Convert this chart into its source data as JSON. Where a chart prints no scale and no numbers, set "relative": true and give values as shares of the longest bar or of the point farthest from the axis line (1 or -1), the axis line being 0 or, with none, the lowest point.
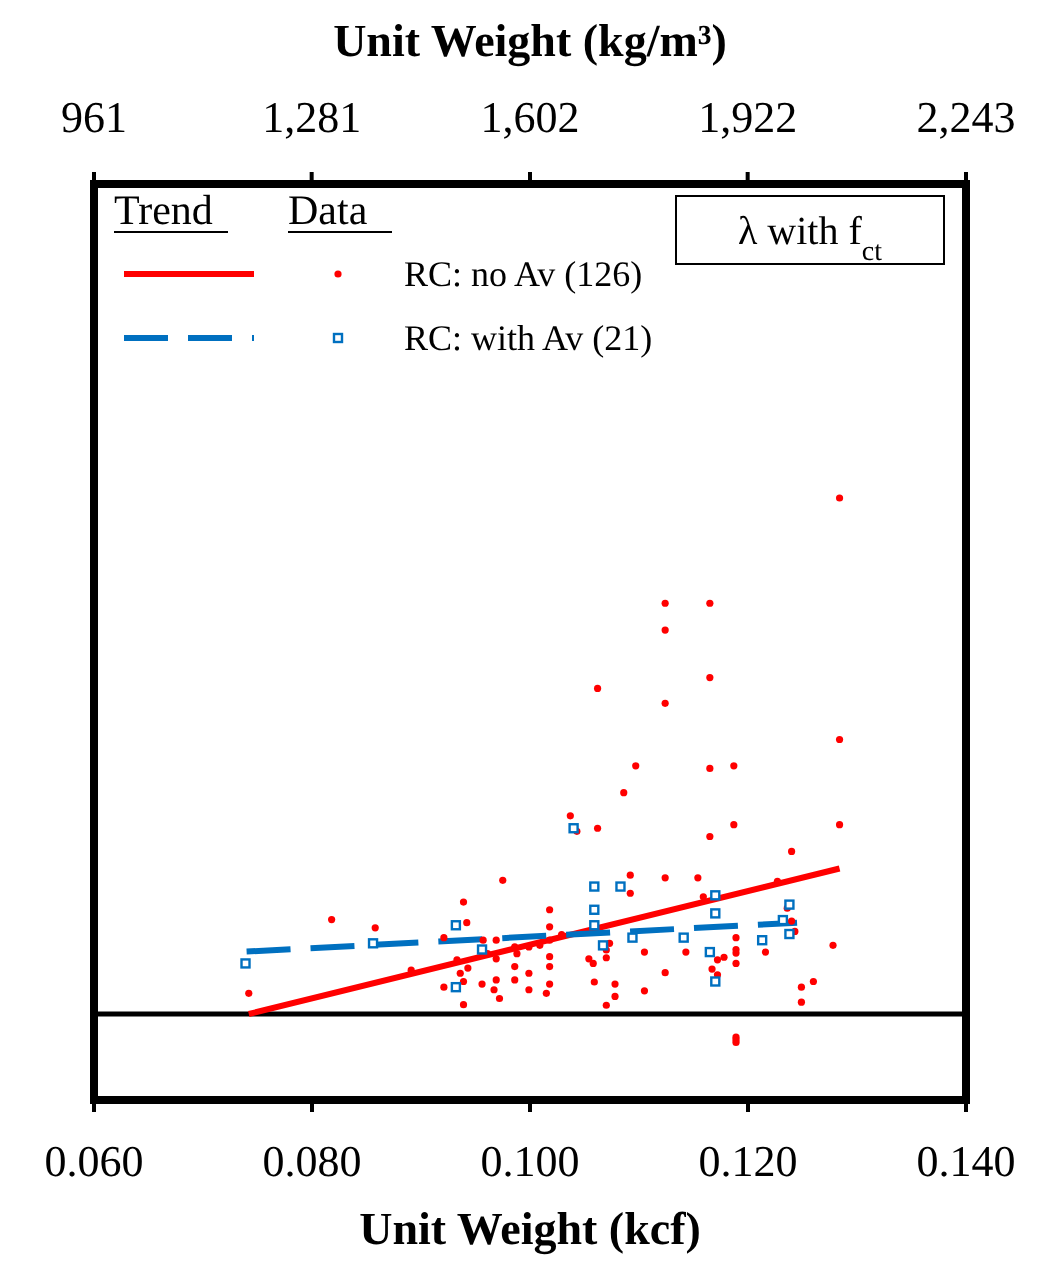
{
  "chart_data": {
    "type": "scatter",
    "relative": true,
    "xlabel": "Unit Weight (kcf)",
    "x2label": "Unit Weight (kg/m³)",
    "xlim": [
      0.06,
      0.14
    ],
    "xticks": [
      {
        "value": 0.06,
        "label": "0.060"
      },
      {
        "value": 0.08,
        "label": "0.080"
      },
      {
        "value": 0.1,
        "label": "0.100"
      },
      {
        "value": 0.12,
        "label": "0.120"
      },
      {
        "value": 0.14,
        "label": "0.140"
      }
    ],
    "x2lim": [
      961,
      2243
    ],
    "x2ticks": [
      {
        "value": 961,
        "label": "961"
      },
      {
        "value": 1281,
        "label": "1,281"
      },
      {
        "value": 1602,
        "label": "1,602"
      },
      {
        "value": 1922,
        "label": "1,922"
      },
      {
        "value": 2243,
        "label": "2,243"
      }
    ],
    "grid": false,
    "legend": "top left",
    "annotations": [
      "Trend",
      "Data",
      "λ with f$_{ct}$"
    ],
    "series": [
      {
        "type": "line",
        "color": "#ff0000",
        "line_style": "solid",
        "marker": "none",
        "x": [
          0.0742,
          0.1284
        ],
        "values": [
          0,
          0.282
        ]
      },
      {
        "type": "line",
        "color": "#0070c0",
        "line_style": "dashed",
        "marker": "none",
        "x": [
          0.074,
          0.1245
        ],
        "values": [
          0.121,
          0.177
        ]
      },
      {
        "name": "RC: no Av (126)",
        "color": "#ff0000",
        "marker": "circle",
        "x": [
          0.0742,
          0.0818,
          0.0858,
          0.0891,
          0.0921,
          0.0921,
          0.0933,
          0.0936,
          0.0939,
          0.0942,
          0.0939,
          0.0939,
          0.0943,
          0.0957,
          0.0956,
          0.0961,
          0.0969,
          0.0969,
          0.0969,
          0.0972,
          0.0975,
          0.0967,
          0.0986,
          0.0986,
          0.0986,
          0.0988,
          0.0999,
          0.0999,
          0.0999,
          0.1009,
          0.1018,
          0.1018,
          0.1018,
          0.1018,
          0.1018,
          0.1018,
          0.1015,
          0.1029,
          0.1037,
          0.1043,
          0.1054,
          0.1058,
          0.1059,
          0.1062,
          0.1062,
          0.107,
          0.107,
          0.1073,
          0.107,
          0.1078,
          0.1078,
          0.1086,
          0.1092,
          0.1092,
          0.1097,
          0.1105,
          0.1105,
          0.1124,
          0.1124,
          0.1124,
          0.1124,
          0.1124,
          0.1143,
          0.1154,
          0.1159,
          0.1165,
          0.1165,
          0.1165,
          0.1165,
          0.1167,
          0.1172,
          0.1172,
          0.1178,
          0.1187,
          0.1187,
          0.1189,
          0.1189,
          0.1189,
          0.1189,
          0.1189,
          0.1189,
          0.1189,
          0.1216,
          0.1227,
          0.1236,
          0.124,
          0.124,
          0.1243,
          0.1249,
          0.1249,
          0.126,
          0.1278,
          0.1284,
          0.1284,
          0.1284
        ],
        "values": [
          0.04,
          0.183,
          0.167,
          0.085,
          0.148,
          0.052,
          0.105,
          0.079,
          0.217,
          0.177,
          0.063,
          0.018,
          0.089,
          0.143,
          0.058,
          0.117,
          0.143,
          0.107,
          0.066,
          0.03,
          0.259,
          0.047,
          0.13,
          0.092,
          0.066,
          0.117,
          0.13,
          0.079,
          0.047,
          0.133,
          0.202,
          0.169,
          0.143,
          0.111,
          0.092,
          0.058,
          0.04,
          0.154,
          0.384,
          0.354,
          0.107,
          0.098,
          0.062,
          0.631,
          0.36,
          0.124,
          0.109,
          0.137,
          0.017,
          0.058,
          0.034,
          0.429,
          0.269,
          0.234,
          0.481,
          0.12,
          0.045,
          0.796,
          0.744,
          0.602,
          0.264,
          0.08,
          0.12,
          0.264,
          0.227,
          0.796,
          0.652,
          0.476,
          0.344,
          0.087,
          0.105,
          0.076,
          0.11,
          0.481,
          0.367,
          0.148,
          0.125,
          0.118,
          0.098,
          -0.045,
          -0.05,
          -0.055,
          0.12,
          0.257,
          0.205,
          0.315,
          0.18,
          0.16,
          0.052,
          0.023,
          0.063,
          0.133,
          0.532,
          0.367,
          1
        ]
      },
      {
        "name": "RC: with Av (21)",
        "color": "#0070c0",
        "marker": "square",
        "x": [
          0.0739,
          0.0856,
          0.0932,
          0.0932,
          0.0956,
          0.104,
          0.1059,
          0.1059,
          0.1059,
          0.1067,
          0.1083,
          0.1094,
          0.1141,
          0.1165,
          0.117,
          0.117,
          0.117,
          0.1213,
          0.1232,
          0.1238,
          0.1238
        ],
        "values": [
          0.098,
          0.137,
          0.172,
          0.052,
          0.125,
          0.36,
          0.247,
          0.202,
          0.172,
          0.133,
          0.247,
          0.148,
          0.148,
          0.12,
          0.23,
          0.195,
          0.063,
          0.143,
          0.182,
          0.212,
          0.155
        ]
      }
    ]
  }
}
